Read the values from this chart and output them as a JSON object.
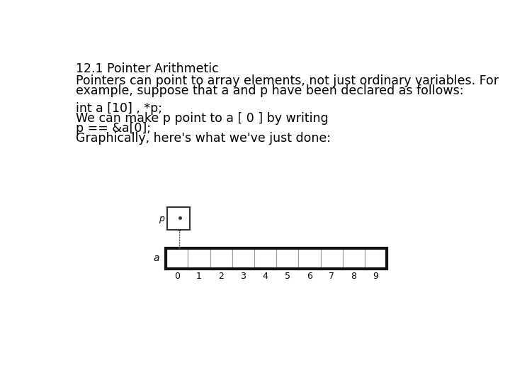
{
  "title": "12.1 Pointer Arithmetic",
  "line1": "Pointers can point to array elements, not just ordinary variables. For",
  "line2": "example, suppose that a and p have been declared as follows:",
  "line3": "int a [10] , *p;",
  "line4": "We can make p point to a [ 0 ] by writing",
  "line5": "p == &a[0];",
  "line6": "Graphically, here's what we've just done:",
  "bg_color": "#ffffff",
  "text_color": "#000000",
  "array_n": 10,
  "array_labels": [
    "0",
    "1",
    "2",
    "3",
    "4",
    "5",
    "6",
    "7",
    "8",
    "9"
  ]
}
